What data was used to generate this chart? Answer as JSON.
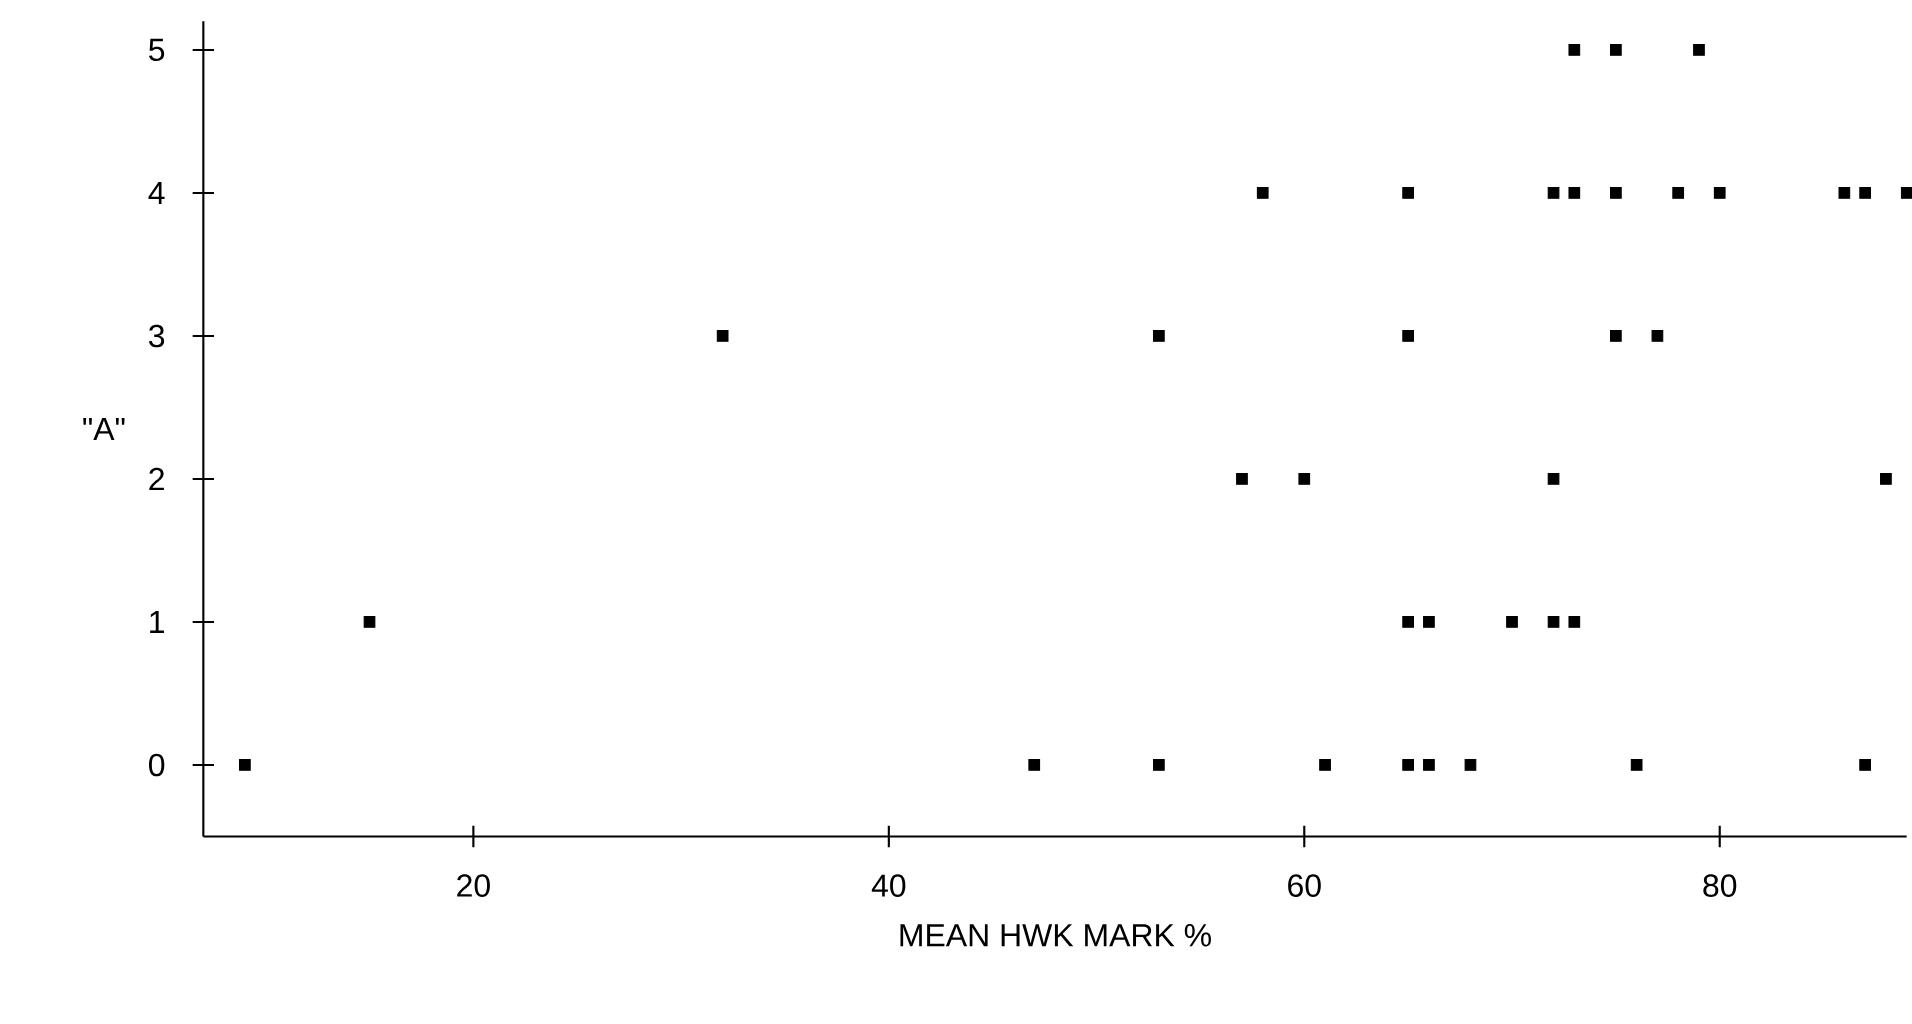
{
  "chart_data": {
    "type": "scatter",
    "xlabel": "MEAN HWK MARK %",
    "ylabel": "\"A\"",
    "x": [
      9,
      47,
      53,
      61,
      65,
      66,
      68,
      76,
      87,
      15,
      65,
      66,
      70,
      72,
      73,
      57,
      60,
      72,
      88,
      32,
      53,
      65,
      75,
      77,
      58,
      65,
      72,
      73,
      75,
      78,
      80,
      86,
      87,
      89,
      73,
      75,
      79
    ],
    "series": [
      {
        "color": "#000000",
        "values": [
          0,
          0,
          0,
          0,
          0,
          0,
          0,
          0,
          0,
          1,
          1,
          1,
          1,
          1,
          1,
          2,
          2,
          2,
          2,
          3,
          3,
          3,
          3,
          3,
          4,
          4,
          4,
          4,
          4,
          4,
          4,
          4,
          4,
          4,
          5,
          5,
          5
        ]
      }
    ],
    "xlim": [
      7,
      89
    ],
    "ylim": [
      -0.5,
      5.2
    ],
    "xticks": [
      20,
      40,
      60,
      80
    ],
    "yticks": [
      0,
      1,
      2,
      3,
      4,
      5
    ],
    "marker": "square"
  }
}
